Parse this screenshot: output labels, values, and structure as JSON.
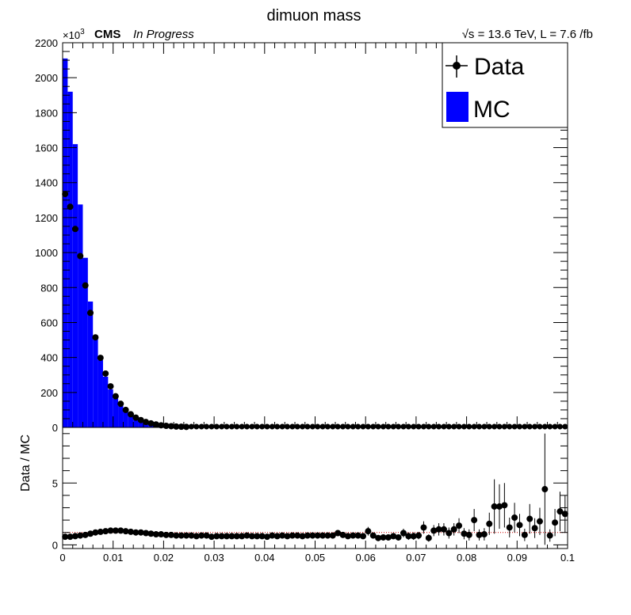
{
  "chart_data": {
    "type": "bar",
    "title": "dimuon mass",
    "experiment_label": "CMS",
    "status_label": "In Progress",
    "energy_label": "√s = 13.6 TeV, L = 7.6 /fb",
    "y_multiplier_label": "×10",
    "y_multiplier_exp": "3",
    "legend": [
      "Data",
      "MC"
    ],
    "ratio_ylabel": "Data / MC",
    "xlim": [
      0,
      0.1
    ],
    "ylim_main": [
      0,
      2200
    ],
    "ylim_ratio": [
      -0.3,
      9.5
    ],
    "x_ticks": [
      "0",
      "0.01",
      "0.02",
      "0.03",
      "0.04",
      "0.05",
      "0.06",
      "0.07",
      "0.08",
      "0.09",
      "0.1"
    ],
    "y_ticks_main": [
      "0",
      "200",
      "400",
      "600",
      "800",
      "1000",
      "1200",
      "1400",
      "1600",
      "1800",
      "2000",
      "2200"
    ],
    "y_ticks_ratio": [
      "0",
      "5"
    ],
    "bin_width": 0.001,
    "colors": {
      "mc": "#0000ff",
      "data": "#000000",
      "ratio_line": "#cc0000"
    },
    "mc_values": [
      2110,
      1920,
      1620,
      1275,
      970,
      720,
      525,
      385,
      290,
      218,
      165,
      123,
      90,
      66,
      48,
      35,
      25,
      18,
      13,
      9,
      6
    ],
    "data_values": [
      1335,
      1262,
      1135,
      980,
      812,
      655,
      515,
      398,
      308,
      235,
      178,
      135,
      100,
      75,
      56,
      42,
      31,
      23,
      17,
      12,
      9,
      7,
      5,
      4,
      3
    ],
    "ratio_values": [
      0.65,
      0.65,
      0.7,
      0.75,
      0.8,
      0.9,
      1.0,
      1.05,
      1.1,
      1.15,
      1.15,
      1.15,
      1.1,
      1.05,
      1.0,
      1.0,
      0.95,
      0.9,
      0.85,
      0.85,
      0.8,
      0.8,
      0.75,
      0.75,
      0.75,
      0.75,
      0.7,
      0.75,
      0.75,
      0.65,
      0.7,
      0.7,
      0.7,
      0.7,
      0.7,
      0.7,
      0.75,
      0.7,
      0.7,
      0.7,
      0.65,
      0.75,
      0.7,
      0.75,
      0.7,
      0.75,
      0.75,
      0.7,
      0.75,
      0.75,
      0.75,
      0.75,
      0.75,
      0.75,
      0.95,
      0.8,
      0.7,
      0.75,
      0.75,
      0.7,
      1.1,
      0.75,
      0.55,
      0.6,
      0.6,
      0.7,
      0.6,
      0.95,
      0.7,
      0.7,
      0.75,
      1.4,
      0.55,
      1.15,
      1.25,
      1.25,
      0.95,
      1.25,
      1.55,
      0.9,
      0.8,
      2.0,
      0.8,
      0.85,
      1.7,
      3.1,
      3.1,
      3.2,
      1.4,
      2.2,
      1.6,
      0.8,
      2.1,
      1.35,
      1.9,
      4.5,
      0.75,
      1.8,
      2.7,
      2.5
    ],
    "ratio_errors": [
      0.02,
      0.02,
      0.02,
      0.02,
      0.02,
      0.02,
      0.02,
      0.02,
      0.02,
      0.02,
      0.03,
      0.03,
      0.03,
      0.03,
      0.04,
      0.04,
      0.05,
      0.05,
      0.06,
      0.07,
      0.08,
      0.09,
      0.1,
      0.1,
      0.1,
      0.1,
      0.1,
      0.12,
      0.12,
      0.12,
      0.12,
      0.12,
      0.12,
      0.12,
      0.12,
      0.12,
      0.12,
      0.12,
      0.12,
      0.12,
      0.15,
      0.15,
      0.15,
      0.15,
      0.15,
      0.15,
      0.15,
      0.15,
      0.15,
      0.15,
      0.18,
      0.18,
      0.18,
      0.18,
      0.25,
      0.2,
      0.2,
      0.2,
      0.2,
      0.2,
      0.35,
      0.25,
      0.25,
      0.25,
      0.25,
      0.25,
      0.25,
      0.35,
      0.3,
      0.3,
      0.3,
      0.5,
      0.3,
      0.45,
      0.5,
      0.5,
      0.45,
      0.5,
      0.6,
      0.45,
      0.45,
      0.9,
      0.45,
      0.5,
      0.9,
      2.2,
      1.8,
      1.8,
      0.8,
      1.2,
      0.9,
      0.5,
      1.2,
      0.8,
      1.1,
      4.5,
      0.5,
      1.1,
      1.6,
      1.5
    ]
  }
}
